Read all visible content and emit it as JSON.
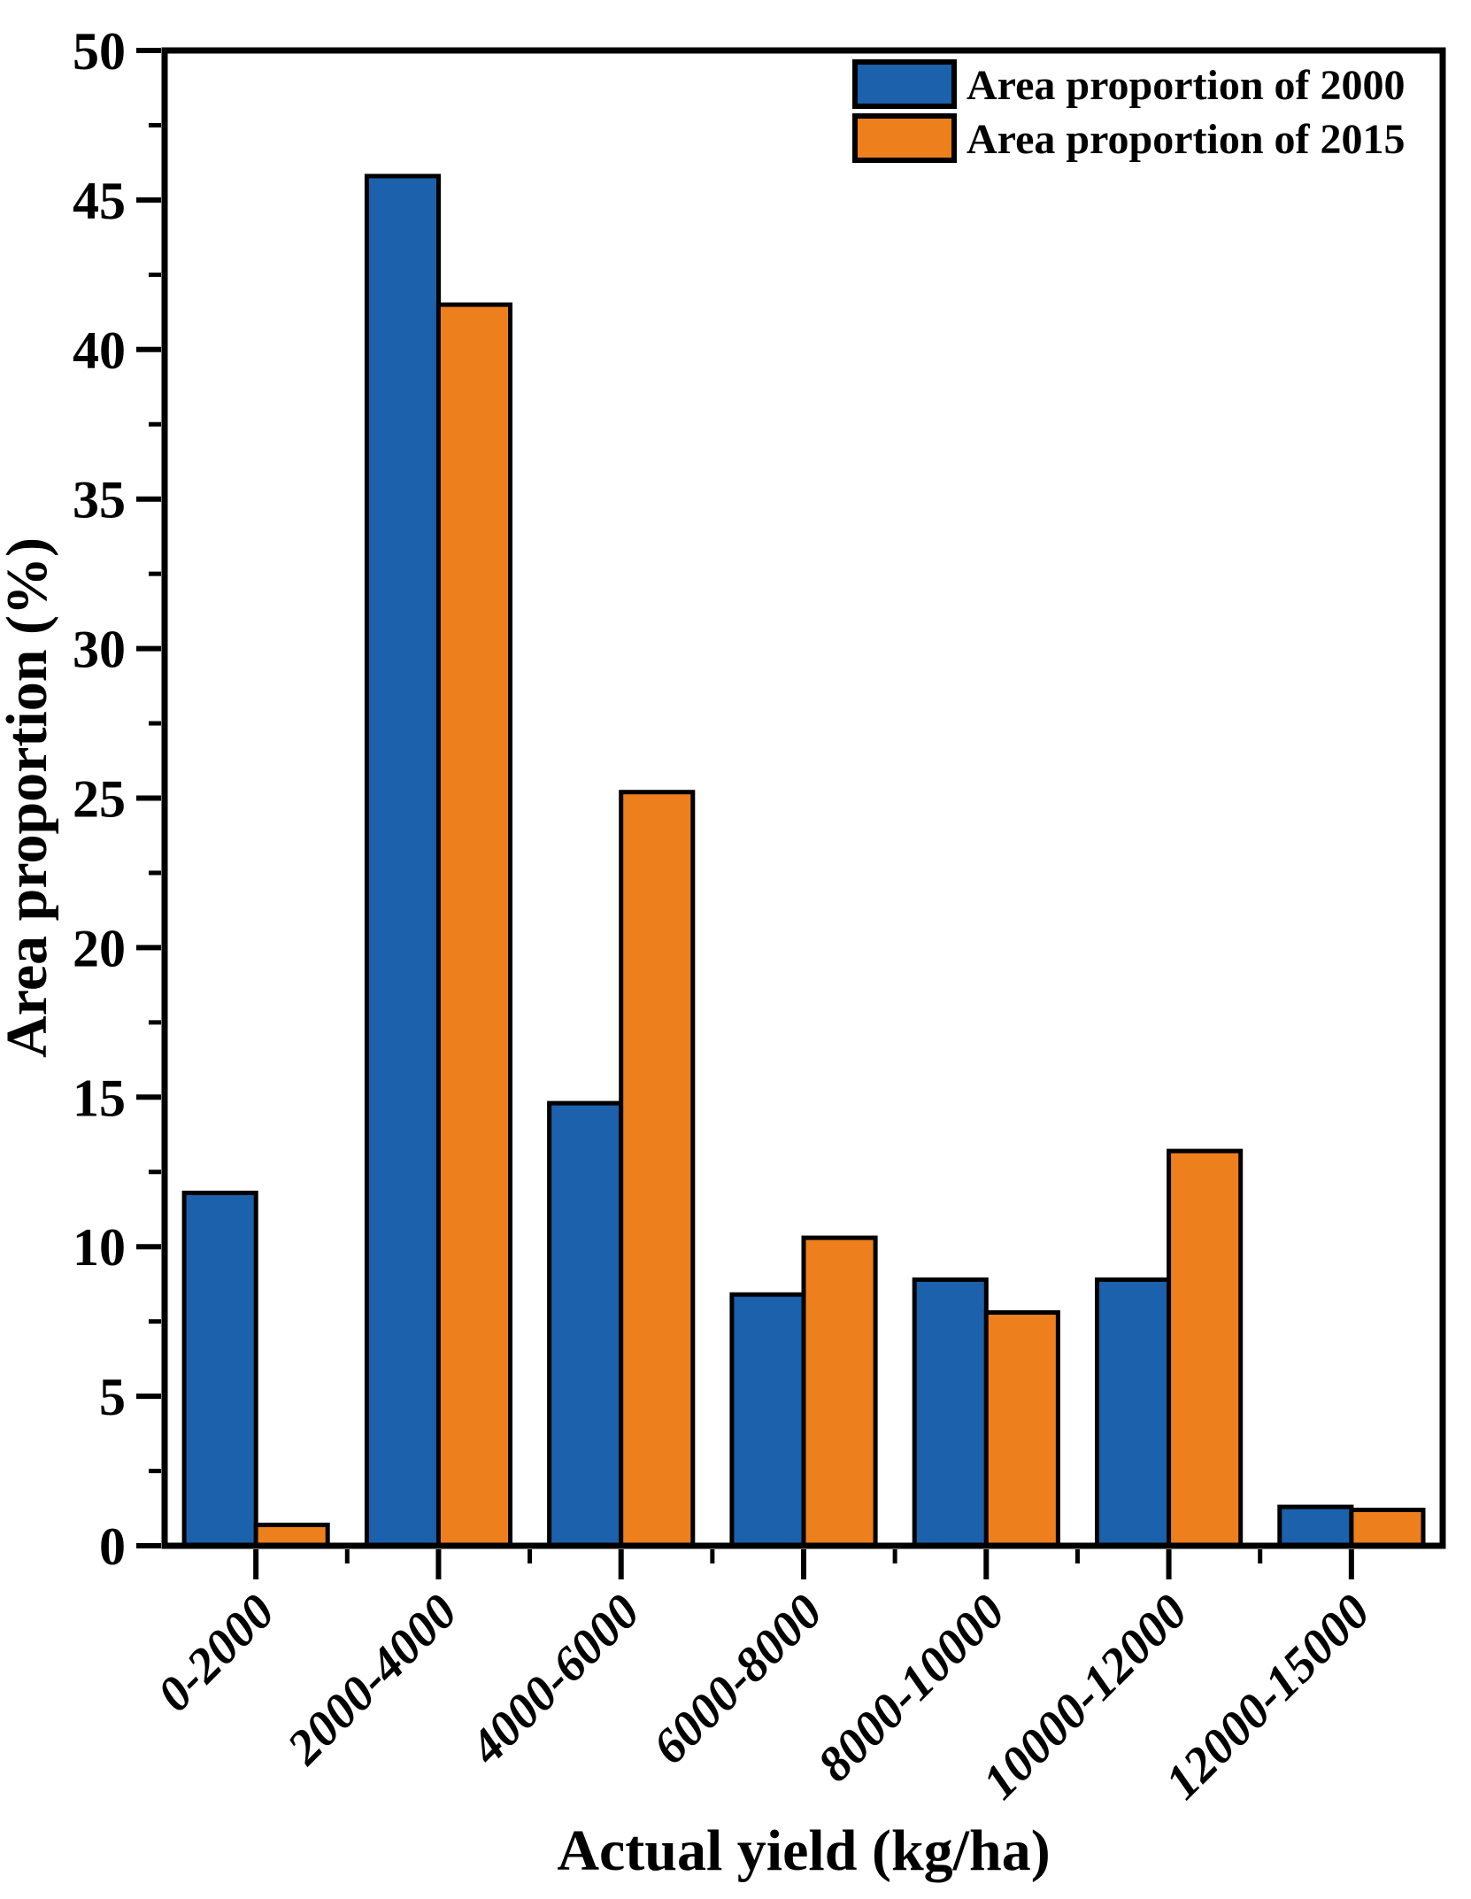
{
  "figure": {
    "background": "#ffffff",
    "frame_color": "#000000"
  },
  "chart_data": {
    "type": "bar",
    "title": "",
    "xlabel": "Actual yield (kg/ha)",
    "ylabel": "Area proportion (%)",
    "categories": [
      "0-2000",
      "2000-4000",
      "4000-6000",
      "6000-8000",
      "8000-10000",
      "10000-12000",
      "12000-15000"
    ],
    "series": [
      {
        "name": "Area proportion of 2000",
        "color": "#1b61ab",
        "values": [
          11.8,
          45.8,
          14.8,
          8.4,
          8.9,
          8.9,
          1.3
        ]
      },
      {
        "name": "Area proportion of 2015",
        "color": "#ee7f1d",
        "values": [
          0.7,
          41.5,
          25.2,
          10.3,
          7.8,
          13.2,
          1.2
        ]
      }
    ],
    "ylim": [
      0,
      50
    ],
    "ytick_major_step": 5,
    "ytick_minor_step": 2.5,
    "ytick_labels": [
      "0",
      "5",
      "10",
      "15",
      "20",
      "25",
      "30",
      "35",
      "40",
      "45",
      "50"
    ],
    "xtick_label_rotation_deg": -45,
    "grid": false,
    "legend_position": "top-right-inside",
    "bar_edge_color": "#000000",
    "axis_color": "#000000"
  }
}
